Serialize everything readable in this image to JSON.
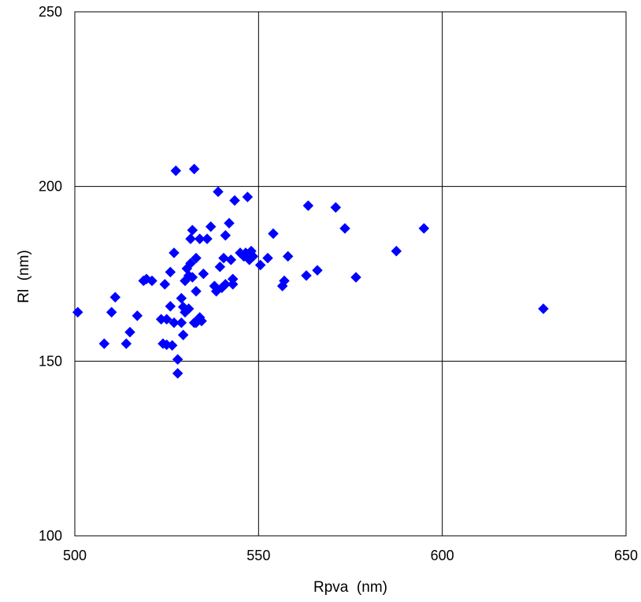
{
  "chart_data": {
    "type": "scatter",
    "title": "",
    "xlabel": "Rpva  (nm)",
    "ylabel": "Rl  (nm)",
    "xlim": [
      500,
      650
    ],
    "ylim": [
      100,
      250
    ],
    "xticks": [
      "500",
      "550",
      "600",
      "650"
    ],
    "yticks": [
      "100",
      "150",
      "200",
      "250"
    ],
    "grid": true,
    "legend": "none",
    "marker": "diamond",
    "marker_color": "#0000FF",
    "series": [
      {
        "points": [
          [
            500.8,
            164.0
          ],
          [
            508.0,
            155.0
          ],
          [
            510.0,
            164.0
          ],
          [
            511.0,
            168.3
          ],
          [
            514.0,
            155.0
          ],
          [
            515.0,
            158.3
          ],
          [
            517.0,
            163.0
          ],
          [
            518.7,
            173.0
          ],
          [
            519.5,
            173.5
          ],
          [
            521.0,
            173.0
          ],
          [
            523.5,
            162.0
          ],
          [
            524.0,
            155.0
          ],
          [
            524.5,
            172.0
          ],
          [
            525.0,
            154.7
          ],
          [
            525.0,
            162.0
          ],
          [
            526.0,
            165.7
          ],
          [
            526.0,
            175.5
          ],
          [
            526.5,
            154.5
          ],
          [
            527.0,
            161.0
          ],
          [
            527.0,
            181.0
          ],
          [
            527.5,
            204.5
          ],
          [
            528.0,
            150.5
          ],
          [
            528.0,
            146.5
          ],
          [
            529.0,
            168.0
          ],
          [
            529.0,
            161.0
          ],
          [
            529.5,
            157.5
          ],
          [
            529.5,
            165.5
          ],
          [
            530.0,
            164.0
          ],
          [
            530.0,
            173.0
          ],
          [
            530.5,
            176.5
          ],
          [
            531.0,
            174.5
          ],
          [
            531.0,
            165.0
          ],
          [
            531.5,
            178.0
          ],
          [
            531.5,
            185.0
          ],
          [
            532.0,
            187.5
          ],
          [
            532.0,
            174.0
          ],
          [
            532.5,
            205.0
          ],
          [
            532.5,
            161.0
          ],
          [
            533.0,
            170.0
          ],
          [
            533.0,
            179.5
          ],
          [
            533.0,
            161.0
          ],
          [
            534.0,
            185.0
          ],
          [
            534.0,
            162.5
          ],
          [
            534.5,
            161.5
          ],
          [
            535.0,
            175.0
          ],
          [
            536.0,
            185.0
          ],
          [
            537.0,
            188.5
          ],
          [
            538.0,
            171.5
          ],
          [
            538.5,
            170.0
          ],
          [
            539.0,
            198.5
          ],
          [
            539.5,
            177.0
          ],
          [
            540.0,
            171.0
          ],
          [
            540.5,
            179.5
          ],
          [
            541.0,
            186.0
          ],
          [
            541.0,
            172.0
          ],
          [
            542.0,
            189.5
          ],
          [
            542.5,
            179.0
          ],
          [
            543.0,
            173.5
          ],
          [
            543.0,
            172.0
          ],
          [
            543.5,
            196.0
          ],
          [
            545.0,
            181.0
          ],
          [
            546.0,
            180.0
          ],
          [
            546.5,
            181.0
          ],
          [
            547.0,
            197.0
          ],
          [
            547.5,
            179.0
          ],
          [
            548.0,
            181.5
          ],
          [
            548.5,
            180.0
          ],
          [
            550.5,
            177.5
          ],
          [
            552.5,
            179.5
          ],
          [
            554.0,
            186.5
          ],
          [
            556.5,
            171.5
          ],
          [
            557.0,
            173.0
          ],
          [
            558.0,
            180.0
          ],
          [
            563.0,
            174.5
          ],
          [
            563.5,
            194.5
          ],
          [
            566.0,
            176.0
          ],
          [
            571.0,
            194.0
          ],
          [
            573.5,
            188.0
          ],
          [
            576.5,
            174.0
          ],
          [
            587.5,
            181.5
          ],
          [
            595.0,
            188.0
          ],
          [
            627.5,
            165.0
          ]
        ]
      }
    ]
  }
}
